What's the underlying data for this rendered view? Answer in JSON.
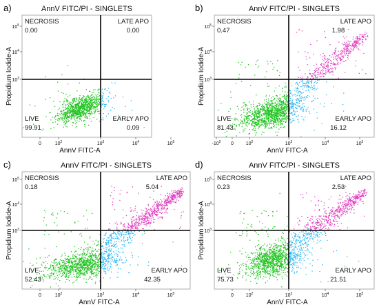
{
  "chart_data": [
    {
      "type": "scatter",
      "panel_label": "a)",
      "title": "AnnV FITC/PI - SINGLETS",
      "xlabel": "AnnV FITC-A",
      "ylabel": "Propidium Iodide-A",
      "x_ticks": [
        "0",
        "10^2",
        "10^3",
        "10^4",
        "10^5"
      ],
      "y_ticks": [
        "10^3",
        "10^4",
        "10^5"
      ],
      "gate": {
        "x": "10^3",
        "y": "10^3"
      },
      "quadrants": [
        {
          "name": "NECROSIS",
          "value": "0.00",
          "position": "top-left"
        },
        {
          "name": "LATE APO",
          "value": "0.00",
          "position": "top-right"
        },
        {
          "name": "LIVE",
          "value": "99.91",
          "position": "bottom-left"
        },
        {
          "name": "EARLY APO",
          "value": "0.09",
          "position": "bottom-right"
        }
      ],
      "colors": {
        "live": "#22c422",
        "early_apo": "#29b6f6",
        "late_apo": "#e040c0",
        "necrosis": "#22c422"
      }
    },
    {
      "type": "scatter",
      "panel_label": "b)",
      "title": "AnnV FITC/PI - SINGLETS",
      "xlabel": "AnnV FITC-A",
      "ylabel": "Propidium Iodide-A",
      "x_ticks": [
        "-10^2",
        "0",
        "10^2",
        "10^3",
        "10^4",
        "10^5"
      ],
      "y_ticks": [
        "10^3",
        "10^4",
        "10^5"
      ],
      "gate": {
        "x": "10^3",
        "y": "10^3"
      },
      "quadrants": [
        {
          "name": "NECROSIS",
          "value": "0.47",
          "position": "top-left"
        },
        {
          "name": "LATE APO",
          "value": "1.98",
          "position": "top-right"
        },
        {
          "name": "LIVE",
          "value": "81.43",
          "position": "bottom-left"
        },
        {
          "name": "EARLY APO",
          "value": "16.12",
          "position": "bottom-right"
        }
      ],
      "colors": {
        "live": "#22c422",
        "early_apo": "#29b6f6",
        "late_apo": "#e040c0",
        "necrosis": "#22c422"
      }
    },
    {
      "type": "scatter",
      "panel_label": "c)",
      "title": "AnnV FITC/PI - SINGLETS",
      "xlabel": "AnnV FITC-A",
      "ylabel": "Propidium Iodide-A",
      "x_ticks": [
        "0",
        "10^2",
        "10^3",
        "10^4",
        "10^5"
      ],
      "y_ticks": [
        "10^3",
        "10^4",
        "10^5"
      ],
      "gate": {
        "x": "10^3",
        "y": "10^3"
      },
      "quadrants": [
        {
          "name": "NECROSIS",
          "value": "0.18",
          "position": "top-left"
        },
        {
          "name": "LATE APO",
          "value": "5.04",
          "position": "top-right"
        },
        {
          "name": "LIVE",
          "value": "52.43",
          "position": "bottom-left"
        },
        {
          "name": "EARLY APO",
          "value": "42.35",
          "position": "bottom-right"
        }
      ],
      "colors": {
        "live": "#22c422",
        "early_apo": "#29b6f6",
        "late_apo": "#e040c0",
        "necrosis": "#22c422"
      }
    },
    {
      "type": "scatter",
      "panel_label": "d)",
      "title": "AnnV FITC/PI - SINGLETS",
      "xlabel": "AnnV FITC-A",
      "ylabel": "Propidium Iodide-A",
      "x_ticks": [
        "0",
        "10^2",
        "10^3",
        "10^4",
        "10^5"
      ],
      "y_ticks": [
        "10^3",
        "10^4",
        "10^5"
      ],
      "gate": {
        "x": "10^3",
        "y": "10^3"
      },
      "quadrants": [
        {
          "name": "NECROSIS",
          "value": "0.23",
          "position": "top-left"
        },
        {
          "name": "LATE APO",
          "value": "2.53",
          "position": "top-right"
        },
        {
          "name": "LIVE",
          "value": "75.73",
          "position": "bottom-left"
        },
        {
          "name": "EARLY APO",
          "value": "21.51",
          "position": "bottom-right"
        }
      ],
      "colors": {
        "live": "#22c422",
        "early_apo": "#29b6f6",
        "late_apo": "#e040c0",
        "necrosis": "#22c422"
      }
    }
  ]
}
